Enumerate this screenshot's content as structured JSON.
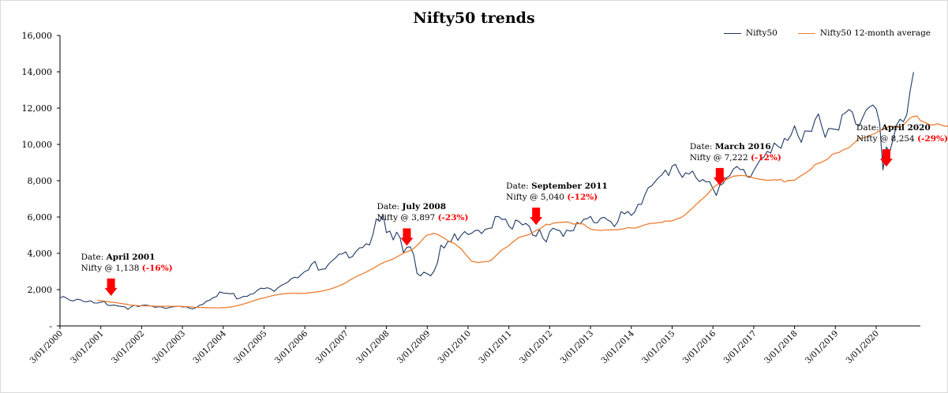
{
  "chart_data": {
    "type": "line",
    "title": "Nifty50 trends",
    "xlabel": "",
    "ylabel": "",
    "ylim": [
      0,
      16000
    ],
    "ytick_labels": [
      "-",
      "2,000",
      "4,000",
      "6,000",
      "8,000",
      "10,000",
      "12,000",
      "14,000",
      "16,000"
    ],
    "xtick_labels": [
      "3/01/2000",
      "3/01/2001",
      "3/01/2002",
      "3/01/2003",
      "3/01/2004",
      "3/01/2005",
      "3/01/2006",
      "3/01/2007",
      "3/01/2008",
      "3/01/2009",
      "3/01/2010",
      "3/01/2011",
      "3/01/2012",
      "3/01/2013",
      "3/01/2014",
      "3/01/2015",
      "3/01/2016",
      "3/01/2017",
      "3/01/2018",
      "3/01/2019",
      "3/01/2020"
    ],
    "grid": false,
    "legend_position": "top-right",
    "colors": {
      "nifty": "#1f3864",
      "average": "#ed7d31",
      "arrow": "#ff0000",
      "percent": "#ff0000"
    },
    "series": [
      {
        "name": "Nifty50",
        "x_start": "2000-01",
        "x_step": "monthly",
        "values": [
          1546,
          1620,
          1528,
          1406,
          1380,
          1471,
          1443,
          1341,
          1333,
          1388,
          1263,
          1263,
          1300,
          1351,
          1138,
          1125,
          1150,
          1100,
          1073,
          1053,
          913,
          1067,
          1140,
          1059,
          1130,
          1152,
          1129,
          1084,
          1028,
          1057,
          1037,
          963,
          1004,
          1050,
          1067,
          1093,
          1041,
          1063,
          978,
          934,
          1006,
          1134,
          1185,
          1356,
          1417,
          1556,
          1615,
          1880,
          1810,
          1800,
          1771,
          1796,
          1484,
          1538,
          1632,
          1632,
          1745,
          1786,
          1956,
          2080,
          2057,
          2103,
          2036,
          1902,
          2087,
          2220,
          2312,
          2413,
          2601,
          2682,
          2652,
          2837,
          3001,
          3074,
          3403,
          3558,
          3071,
          3128,
          3143,
          3414,
          3588,
          3744,
          3954,
          3966,
          4082,
          3745,
          3822,
          4087,
          4296,
          4318,
          4528,
          4464,
          5021,
          5900,
          5763,
          6139,
          5137,
          5224,
          4734,
          5165,
          4870,
          4040,
          4332,
          4360,
          3921,
          2885,
          2755,
          2959,
          2874,
          2763,
          3021,
          3474,
          4449,
          4291,
          4636,
          4662,
          5084,
          4712,
          5002,
          5201,
          5033,
          5098,
          5249,
          5278,
          5087,
          5313,
          5368,
          5402,
          6030,
          6018,
          5863,
          5886,
          5506,
          5333,
          5834,
          5750,
          5560,
          5647,
          5482,
          5001,
          4943,
          5326,
          4832,
          4624,
          5199,
          5385,
          5296,
          5248,
          4924,
          5279,
          5230,
          5258,
          5703,
          5620,
          5880,
          5905,
          6034,
          5693,
          5682,
          5930,
          5986,
          5842,
          5742,
          5471,
          5735,
          6299,
          6176,
          6304,
          6089,
          6277,
          6704,
          6696,
          7230,
          7611,
          7721,
          7954,
          8174,
          8322,
          8588,
          8283,
          8808,
          8902,
          8491,
          8182,
          8434,
          8369,
          8533,
          8173,
          7949,
          8066,
          7935,
          7946,
          7564,
          7185,
          7738,
          7850,
          8160,
          8288,
          8639,
          8786,
          8612,
          8625,
          8224,
          8186,
          8561,
          8880,
          9174,
          9304,
          9621,
          9521,
          10077,
          9918,
          9789,
          10335,
          10227,
          10531,
          11028,
          10493,
          10114,
          10739,
          10736,
          10714,
          11357,
          11681,
          11000,
          10387,
          10877,
          10863,
          10831,
          10793,
          11624,
          11748,
          11923,
          11789,
          11118,
          11023,
          11474,
          11877,
          12056,
          12168,
          11962,
          11202,
          8598,
          9860,
          9580,
          10302,
          11073,
          11387,
          11248,
          11642,
          12969,
          13982
        ]
      },
      {
        "name": "Nifty50 12-month average",
        "x_start": "2000-12",
        "x_step": "monthly",
        "values": [
          1415,
          1394,
          1371,
          1338,
          1315,
          1296,
          1266,
          1235,
          1208,
          1173,
          1146,
          1130,
          1119,
          1108,
          1107,
          1105,
          1095,
          1087,
          1083,
          1078,
          1087,
          1086,
          1082,
          1080,
          1083,
          1075,
          1065,
          1051,
          1041,
          1026,
          1019,
          1015,
          1010,
          1004,
          1001,
          1001,
          1001,
          1009,
          1018,
          1036,
          1068,
          1108,
          1158,
          1209,
          1265,
          1325,
          1393,
          1451,
          1504,
          1544,
          1593,
          1648,
          1688,
          1723,
          1752,
          1773,
          1789,
          1799,
          1799,
          1797,
          1793,
          1801,
          1819,
          1838,
          1862,
          1888,
          1919,
          1959,
          2006,
          2060,
          2132,
          2205,
          2282,
          2373,
          2498,
          2602,
          2700,
          2795,
          2879,
          2966,
          3061,
          3165,
          3273,
          3386,
          3479,
          3557,
          3611,
          3690,
          3797,
          3899,
          4010,
          4089,
          4150,
          4269,
          4434,
          4632,
          4848,
          5018,
          5041,
          5106,
          5045,
          4937,
          4835,
          4701,
          4605,
          4546,
          4377,
          4247,
          3998,
          3786,
          3564,
          3529,
          3491,
          3520,
          3538,
          3546,
          3653,
          3840,
          4024,
          4196,
          4308,
          4419,
          4600,
          4740,
          4883,
          4937,
          4982,
          5041,
          5152,
          5266,
          5332,
          5468,
          5601,
          5573,
          5659,
          5689,
          5713,
          5707,
          5729,
          5690,
          5608,
          5640,
          5631,
          5610,
          5447,
          5341,
          5301,
          5281,
          5262,
          5286,
          5285,
          5291,
          5303,
          5296,
          5333,
          5353,
          5423,
          5394,
          5386,
          5440,
          5499,
          5571,
          5621,
          5657,
          5657,
          5697,
          5704,
          5783,
          5770,
          5787,
          5870,
          5929,
          6006,
          6153,
          6323,
          6495,
          6683,
          6851,
          7019,
          7189,
          7392,
          7610,
          7752,
          7884,
          7960,
          8064,
          8168,
          8246,
          8269,
          8286,
          8284,
          8256,
          8234,
          8137,
          8108,
          8076,
          8051,
          8021,
          8032,
          8049,
          8032,
          8079,
          7925,
          8018,
          8012,
          8031,
          8166,
          8287,
          8401,
          8522,
          8666,
          8894,
          8951,
          9032,
          9120,
          9226,
          9442,
          9518,
          9549,
          9667,
          9753,
          9819,
          9985,
          10164,
          10347,
          10351,
          10410,
          10487,
          10556,
          10641,
          10763,
          10841,
          10910,
          10999,
          10972,
          10915,
          10953,
          11074,
          11267,
          11459,
          11533,
          11564,
          11313,
          11244,
          11156,
          11076,
          11073,
          11139,
          11075,
          11010,
          11010,
          11075
        ]
      }
    ],
    "annotations": [
      {
        "date_label": "Date:",
        "date": "April 2001",
        "value_label": "Nifty @ 1,138",
        "pct": "(-16%)",
        "x": "2001-04",
        "y": 1138
      },
      {
        "date_label": "Date:",
        "date": "July 2008",
        "value_label": "Nifty @ 3,897",
        "pct": "(-23%)",
        "x": "2008-07",
        "y": 3897
      },
      {
        "date_label": "Date:",
        "date": "September 2011",
        "value_label": "Nifty @ 5,040",
        "pct": "(-12%)",
        "x": "2011-09",
        "y": 5040
      },
      {
        "date_label": "Date:",
        "date": "March 2016",
        "value_label": "Nifty @ 7,222",
        "pct": "(-12%)",
        "x": "2016-03",
        "y": 7222
      },
      {
        "date_label": "Date:",
        "date": "April 2020",
        "value_label": "Nifty @ 8,254",
        "pct": "(-29%)",
        "x": "2020-04",
        "y": 8254
      }
    ]
  }
}
